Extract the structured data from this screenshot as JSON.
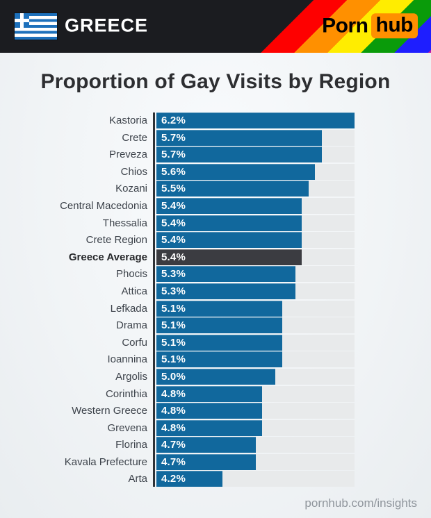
{
  "header": {
    "country": "GREECE",
    "flag": "greece-flag",
    "brand_porn": "Porn",
    "brand_hub": "hub"
  },
  "title": "Proportion of Gay Visits by Region",
  "footer": "pornhub.com/insights",
  "colors": {
    "header_background": "#1b1c20",
    "bar": "#11689d",
    "highlight_bar": "#3b3c41",
    "track": "#e8eaeb",
    "axis": "#2e3237",
    "brand_orange": "#ff9000",
    "rainbow": [
      "#fe0000",
      "#ff9000",
      "#ffed00",
      "#0a9b0a",
      "#1e1eff",
      "#c016a6"
    ],
    "flag_blue": "#1d70bb"
  },
  "chart_data": {
    "type": "bar",
    "orientation": "horizontal",
    "title": "Proportion of Gay Visits by Region",
    "categories": [
      "Kastoria",
      "Crete",
      "Preveza",
      "Chios",
      "Kozani",
      "Central Macedonia",
      "Thessalia",
      "Crete Region",
      "Greece Average",
      "Phocis",
      "Attica",
      "Lefkada",
      "Drama",
      "Corfu",
      "Ioannina",
      "Argolis",
      "Corinthia",
      "Western Greece",
      "Grevena",
      "Florina",
      "Kavala Prefecture",
      "Arta"
    ],
    "values": [
      6.2,
      5.7,
      5.7,
      5.6,
      5.5,
      5.4,
      5.4,
      5.4,
      5.4,
      5.3,
      5.3,
      5.1,
      5.1,
      5.1,
      5.1,
      5.0,
      4.8,
      4.8,
      4.8,
      4.7,
      4.7,
      4.2
    ],
    "value_labels": [
      "6.2%",
      "5.7%",
      "5.7%",
      "5.6%",
      "5.5%",
      "5.4%",
      "5.4%",
      "5.4%",
      "5.4%",
      "5.3%",
      "5.3%",
      "5.1%",
      "5.1%",
      "5.1%",
      "5.1%",
      "5.0%",
      "4.8%",
      "4.8%",
      "4.8%",
      "4.7%",
      "4.7%",
      "4.2%"
    ],
    "highlight_category": "Greece Average",
    "unit": "%",
    "xlim": [
      3.2,
      6.2
    ],
    "grid": false,
    "value_label_position": "inside-left",
    "legend": false
  }
}
